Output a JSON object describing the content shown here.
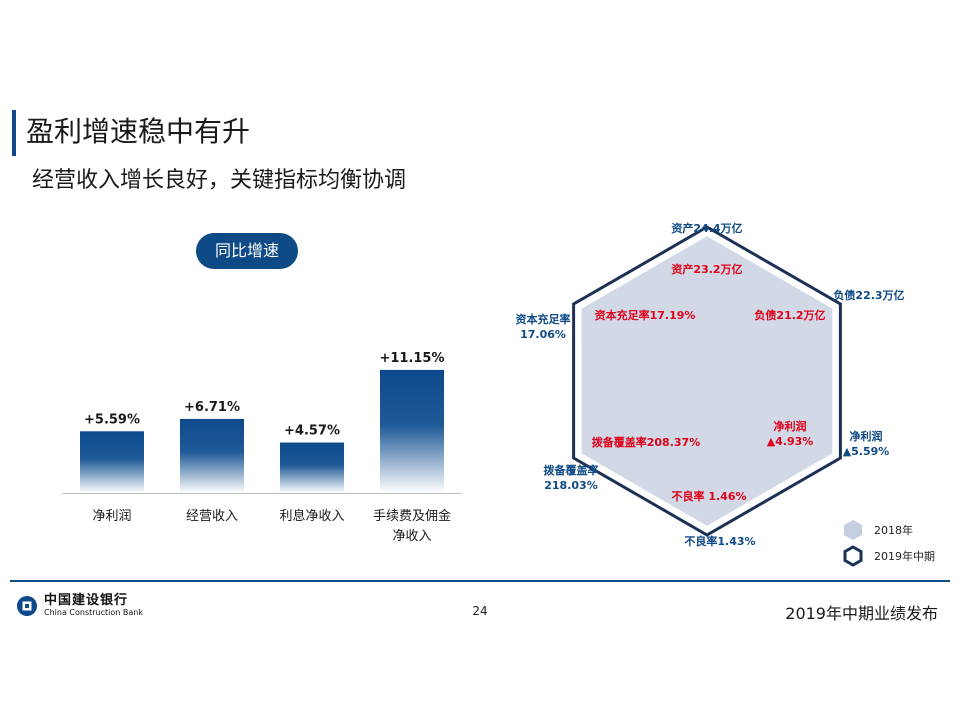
{
  "header": {
    "title": "盈利增速稳中有升",
    "subtitle": "经营收入增长良好，关键指标均衡协调"
  },
  "bar_panel": {
    "pill_label": "同比增速"
  },
  "radar_legend": {
    "series_2018": "2018年",
    "series_2019": "2019年中期"
  },
  "footer": {
    "bank_name_cn": "中国建设银行",
    "bank_name_en": "China Construction Bank",
    "page_number": "24",
    "report_title": "2019年中期业绩发布"
  },
  "colors": {
    "brand_blue": "#0d4a8c",
    "bar_dark": "#0d4a8c",
    "highlight_red": "#e0001b",
    "radar_fill": "#d2d8e6",
    "radar_outline": "#1c3156"
  },
  "chart_data": [
    {
      "type": "bar",
      "title": "同比增速",
      "categories": [
        "净利润",
        "经营收入",
        "利息净收入",
        "手续费及佣金净收入"
      ],
      "category_labels": [
        [
          "净利润"
        ],
        [
          "经营收入"
        ],
        [
          "利息净收入"
        ],
        [
          "手续费及佣金",
          "净收入"
        ]
      ],
      "values": [
        5.59,
        6.71,
        4.57,
        11.15
      ],
      "value_labels": [
        "+5.59%",
        "+6.71%",
        "+4.57%",
        "+11.15%"
      ],
      "ylim": [
        0,
        12.5
      ],
      "grid": false
    },
    {
      "type": "radar",
      "axes": [
        "资产",
        "负债",
        "净利润",
        "不良率",
        "拨备覆盖率",
        "资本充足率"
      ],
      "series": [
        {
          "name": "2018年",
          "labels": [
            [
              "资产23.2万亿"
            ],
            [
              "负债21.2万亿"
            ],
            [
              "净利润",
              "▲4.93%"
            ],
            [
              "不良率 1.46%"
            ],
            [
              "拨备覆盖率208.37%"
            ],
            [
              "资本充足率17.19%"
            ]
          ]
        },
        {
          "name": "2019年中期",
          "labels": [
            [
              "资产24.4万亿"
            ],
            [
              "负债22.3万亿"
            ],
            [
              "净利润",
              "▲5.59%"
            ],
            [
              "不良率1.43%"
            ],
            [
              "拨备覆盖率",
              "218.03%"
            ],
            [
              "资本充足率",
              "17.06%"
            ]
          ]
        }
      ]
    }
  ]
}
